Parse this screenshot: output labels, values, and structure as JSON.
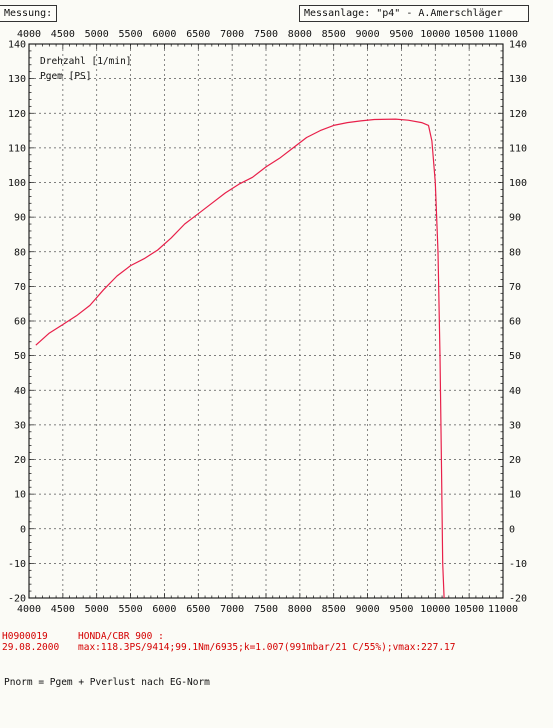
{
  "header": {
    "left_label": "Messung:",
    "right_label": "Messanlage: \"p4\" - A.Amerschläger"
  },
  "chart_data": {
    "type": "line",
    "xlim": [
      4000,
      11000
    ],
    "ylim": [
      -20,
      140
    ],
    "x_ticks": [
      "4000",
      "4500",
      "5000",
      "5500",
      "6000",
      "6500",
      "7000",
      "7500",
      "8000",
      "8500",
      "9000",
      "9500",
      "10000",
      "10500",
      "11000"
    ],
    "y_ticks": [
      "140",
      "130",
      "120",
      "110",
      "100",
      "90",
      "80",
      "70",
      "60",
      "50",
      "40",
      "30",
      "20",
      "10",
      "0",
      "-10",
      "-20"
    ],
    "grid": true,
    "legend_lines": [
      "Drehzahl [1/min]",
      "Pgem [PS]"
    ],
    "series": [
      {
        "name": "Pgem [PS]",
        "color": "#e8204a",
        "points": [
          [
            4100,
            53
          ],
          [
            4300,
            56.5
          ],
          [
            4500,
            59
          ],
          [
            4700,
            61.5
          ],
          [
            4900,
            64.5
          ],
          [
            5100,
            69
          ],
          [
            5300,
            73
          ],
          [
            5500,
            76
          ],
          [
            5700,
            78
          ],
          [
            5900,
            80.5
          ],
          [
            6100,
            84
          ],
          [
            6300,
            88
          ],
          [
            6500,
            91
          ],
          [
            6700,
            94
          ],
          [
            6900,
            97
          ],
          [
            7100,
            99.5
          ],
          [
            7300,
            101.5
          ],
          [
            7500,
            104.5
          ],
          [
            7700,
            107
          ],
          [
            7900,
            110
          ],
          [
            8100,
            113
          ],
          [
            8300,
            115
          ],
          [
            8500,
            116.5
          ],
          [
            8700,
            117.3
          ],
          [
            8900,
            117.8
          ],
          [
            9100,
            118.2
          ],
          [
            9414,
            118.3
          ],
          [
            9600,
            118.0
          ],
          [
            9800,
            117.3
          ],
          [
            9900,
            116.5
          ],
          [
            9950,
            112
          ],
          [
            10000,
            100
          ],
          [
            10040,
            80
          ],
          [
            10070,
            50
          ],
          [
            10090,
            20
          ],
          [
            10110,
            -10
          ],
          [
            10130,
            -20
          ]
        ]
      }
    ]
  },
  "footer": {
    "id": "H0900019",
    "date": "29.08.2000",
    "vehicle": "HONDA/CBR 900 :",
    "summary": "max:118.3PS/9414;99.1Nm/6935;k=1.007(991mbar/21 C/55%);vmax:227.17",
    "note": "Pnorm = Pgem + Pverlust nach EG-Norm"
  }
}
